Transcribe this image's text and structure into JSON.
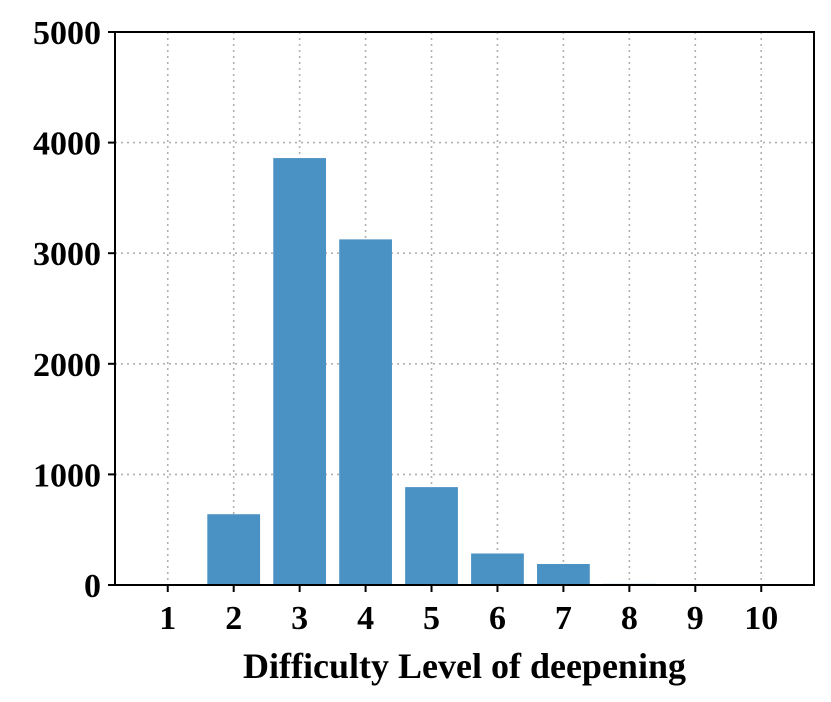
{
  "chart_data": {
    "type": "bar",
    "title": "",
    "xlabel": "Difficulty Level of deepening",
    "ylabel": "",
    "categories": [
      "1",
      "2",
      "3",
      "4",
      "5",
      "6",
      "7",
      "8",
      "9",
      "10"
    ],
    "values": [
      2,
      640,
      3860,
      3125,
      885,
      285,
      190,
      10,
      3,
      1
    ],
    "ylim": [
      0,
      5000
    ],
    "yticks": [
      "0",
      "1000",
      "2000",
      "3000",
      "4000",
      "5000"
    ],
    "grid": true,
    "bar_color": "#4a92c3"
  }
}
